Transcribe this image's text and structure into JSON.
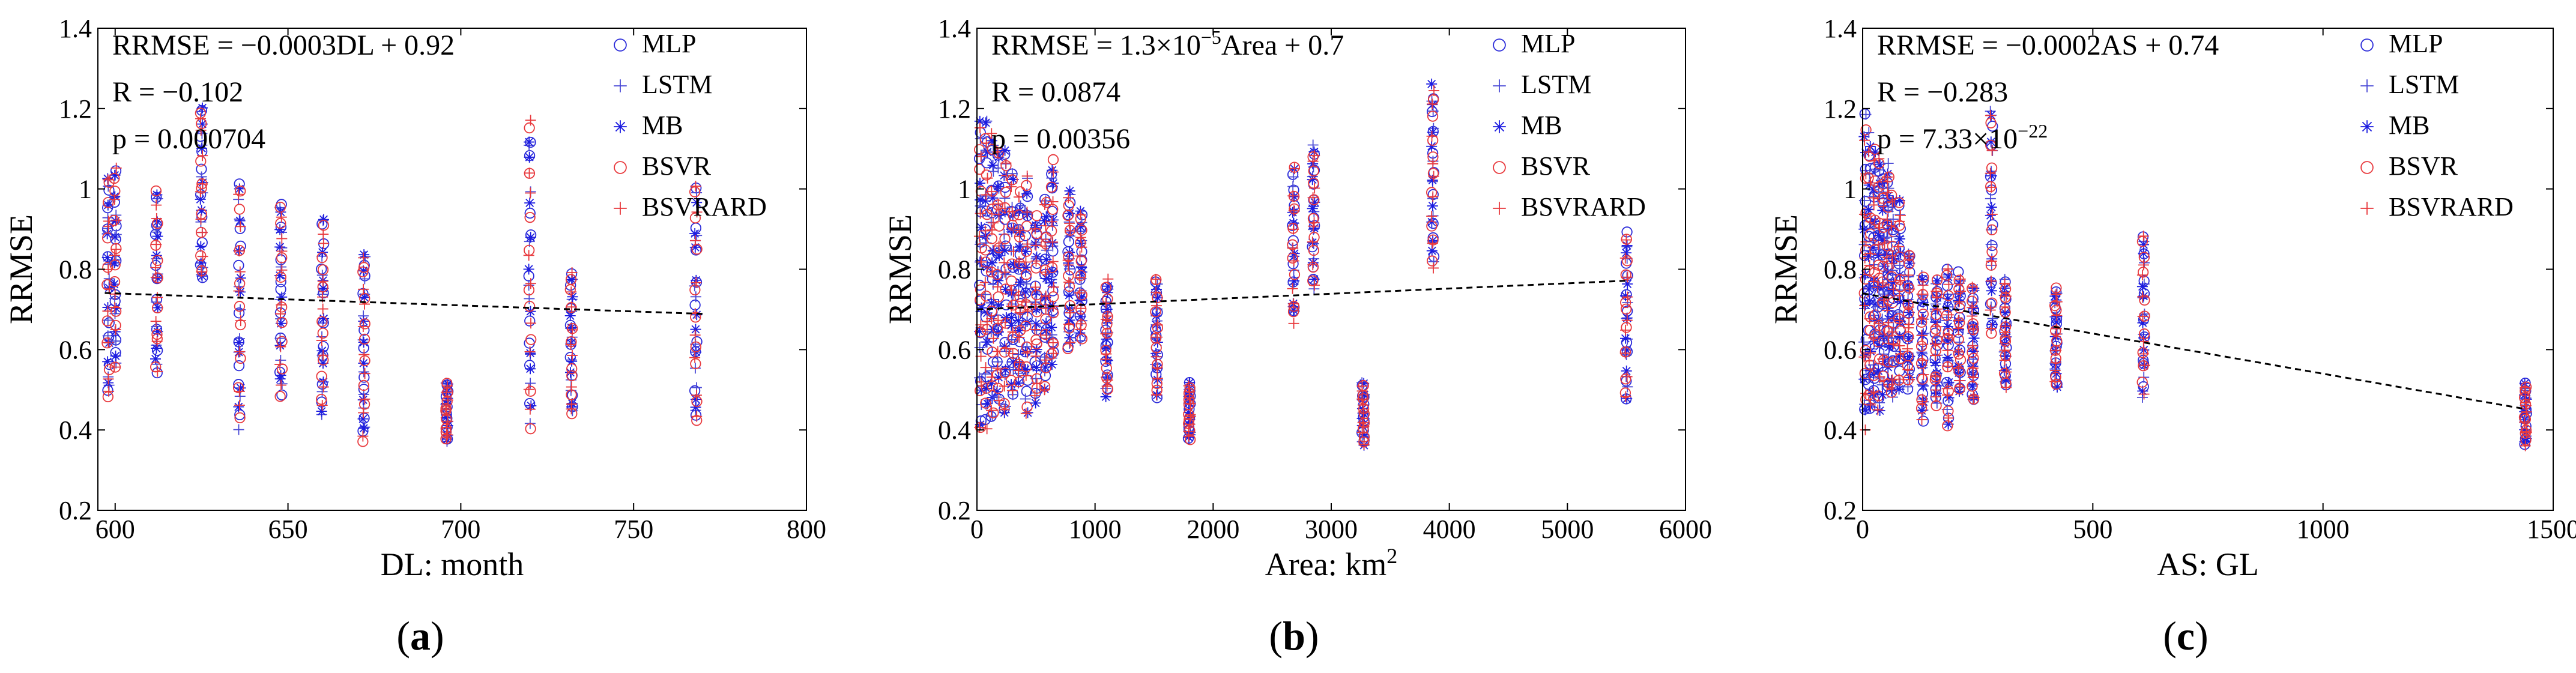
{
  "chart_data": [
    {
      "type": "scatter",
      "panel_label": "a",
      "xlabel": "DL: month",
      "ylabel": "RRMSE",
      "xlim": [
        595,
        800
      ],
      "ylim": [
        0.2,
        1.4
      ],
      "xticks": [
        "600",
        "650",
        "700",
        "750",
        "800"
      ],
      "xtick_values": [
        600,
        650,
        700,
        750,
        800
      ],
      "yticks": [
        "0.2",
        "0.4",
        "0.6",
        "0.8",
        "1",
        "1.2",
        "1.4"
      ],
      "ytick_values": [
        0.2,
        0.4,
        0.6,
        0.8,
        1.0,
        1.2,
        1.4
      ],
      "annotations": [
        {
          "text": "RRMSE = −0.0003DL + 0.92"
        },
        {
          "text": "R = −0.102"
        },
        {
          "text": "p = 0.000704"
        }
      ],
      "legend": {
        "position": "top-right",
        "entries": [
          "MLP",
          "LSTM",
          "MB",
          "BSVR",
          "BSVRARD"
        ]
      },
      "regression": {
        "slope": -0.0003,
        "intercept": 0.92,
        "x_range": [
          597,
          770
        ]
      },
      "clusters": [
        {
          "x": 598,
          "ymin": 0.46,
          "ymax": 1.05
        },
        {
          "x": 600,
          "ymin": 0.55,
          "ymax": 1.08
        },
        {
          "x": 612,
          "ymin": 0.53,
          "ymax": 1.01
        },
        {
          "x": 625,
          "ymin": 0.75,
          "ymax": 1.22
        },
        {
          "x": 636,
          "ymin": 0.4,
          "ymax": 1.04
        },
        {
          "x": 648,
          "ymin": 0.48,
          "ymax": 0.98
        },
        {
          "x": 660,
          "ymin": 0.43,
          "ymax": 0.93
        },
        {
          "x": 672,
          "ymin": 0.36,
          "ymax": 0.86
        },
        {
          "x": 696,
          "ymin": 0.37,
          "ymax": 0.52
        },
        {
          "x": 720,
          "ymin": 0.4,
          "ymax": 1.18
        },
        {
          "x": 732,
          "ymin": 0.42,
          "ymax": 0.81
        },
        {
          "x": 768,
          "ymin": 0.4,
          "ymax": 1.02
        }
      ]
    },
    {
      "type": "scatter",
      "panel_label": "b",
      "xlabel": "Area: km",
      "xlabel_sup": "2",
      "ylabel": "RRMSE",
      "xlim": [
        0,
        6000
      ],
      "ylim": [
        0.2,
        1.4
      ],
      "xticks": [
        "0",
        "1000",
        "2000",
        "3000",
        "4000",
        "5000",
        "6000"
      ],
      "xtick_values": [
        0,
        1000,
        2000,
        3000,
        4000,
        5000,
        6000
      ],
      "yticks": [
        "0.2",
        "0.4",
        "0.6",
        "0.8",
        "1",
        "1.2",
        "1.4"
      ],
      "ytick_values": [
        0.2,
        0.4,
        0.6,
        0.8,
        1.0,
        1.2,
        1.4
      ],
      "annotations": [
        {
          "text": "RRMSE = 1.3×10",
          "sup": "−5",
          "tail": "Area + 0.7"
        },
        {
          "text": "R = 0.0874"
        },
        {
          "text": "p = 0.00356"
        }
      ],
      "legend": {
        "position": "top-right",
        "entries": [
          "MLP",
          "LSTM",
          "MB",
          "BSVR",
          "BSVRARD"
        ]
      },
      "regression": {
        "slope": 1.3e-05,
        "intercept": 0.7,
        "x_range": [
          0,
          5500
        ]
      },
      "clusters": [
        {
          "x": 30,
          "ymin": 0.4,
          "ymax": 1.18
        },
        {
          "x": 80,
          "ymin": 0.4,
          "ymax": 1.2
        },
        {
          "x": 130,
          "ymin": 0.42,
          "ymax": 1.15
        },
        {
          "x": 180,
          "ymin": 0.45,
          "ymax": 1.1
        },
        {
          "x": 240,
          "ymin": 0.42,
          "ymax": 1.12
        },
        {
          "x": 300,
          "ymin": 0.48,
          "ymax": 1.05
        },
        {
          "x": 360,
          "ymin": 0.5,
          "ymax": 1.0
        },
        {
          "x": 420,
          "ymin": 0.44,
          "ymax": 1.04
        },
        {
          "x": 500,
          "ymin": 0.46,
          "ymax": 0.95
        },
        {
          "x": 580,
          "ymin": 0.5,
          "ymax": 0.98
        },
        {
          "x": 640,
          "ymin": 0.55,
          "ymax": 1.08
        },
        {
          "x": 780,
          "ymin": 0.6,
          "ymax": 1.0
        },
        {
          "x": 880,
          "ymin": 0.62,
          "ymax": 0.95
        },
        {
          "x": 1100,
          "ymin": 0.48,
          "ymax": 0.78
        },
        {
          "x": 1520,
          "ymin": 0.48,
          "ymax": 0.78
        },
        {
          "x": 1800,
          "ymin": 0.37,
          "ymax": 0.52
        },
        {
          "x": 2680,
          "ymin": 0.66,
          "ymax": 1.06
        },
        {
          "x": 2850,
          "ymin": 0.75,
          "ymax": 1.12
        },
        {
          "x": 3270,
          "ymin": 0.36,
          "ymax": 0.52
        },
        {
          "x": 3860,
          "ymin": 0.8,
          "ymax": 1.27
        },
        {
          "x": 5500,
          "ymin": 0.47,
          "ymax": 0.9
        }
      ]
    },
    {
      "type": "scatter",
      "panel_label": "c",
      "xlabel": "AS: GL",
      "ylabel": "RRMSE",
      "xlim": [
        0,
        1500
      ],
      "ylim": [
        0.2,
        1.4
      ],
      "xticks": [
        "0",
        "500",
        "1000",
        "1500"
      ],
      "xtick_values": [
        0,
        500,
        1000,
        1500
      ],
      "yticks": [
        "0.2",
        "0.4",
        "0.6",
        "0.8",
        "1",
        "1.2",
        "1.4"
      ],
      "ytick_values": [
        0.2,
        0.4,
        0.6,
        0.8,
        1.0,
        1.2,
        1.4
      ],
      "annotations": [
        {
          "text": "RRMSE = −0.0002AS + 0.74"
        },
        {
          "text": "R = −0.283"
        },
        {
          "text": "p = 7.33×10",
          "sup": "−22"
        }
      ],
      "legend": {
        "position": "top-right",
        "entries": [
          "MLP",
          "LSTM",
          "MB",
          "BSVR",
          "BSVRARD"
        ]
      },
      "regression": {
        "slope": -0.0002,
        "intercept": 0.74,
        "x_range": [
          0,
          1440
        ]
      },
      "clusters": [
        {
          "x": 5,
          "ymin": 0.4,
          "ymax": 1.2
        },
        {
          "x": 15,
          "ymin": 0.42,
          "ymax": 1.15
        },
        {
          "x": 25,
          "ymin": 0.45,
          "ymax": 1.12
        },
        {
          "x": 35,
          "ymin": 0.44,
          "ymax": 1.1
        },
        {
          "x": 45,
          "ymin": 0.48,
          "ymax": 1.05
        },
        {
          "x": 55,
          "ymin": 0.5,
          "ymax": 1.08
        },
        {
          "x": 65,
          "ymin": 0.46,
          "ymax": 1.0
        },
        {
          "x": 80,
          "ymin": 0.5,
          "ymax": 0.98
        },
        {
          "x": 100,
          "ymin": 0.5,
          "ymax": 0.86
        },
        {
          "x": 130,
          "ymin": 0.42,
          "ymax": 0.8
        },
        {
          "x": 160,
          "ymin": 0.46,
          "ymax": 0.78
        },
        {
          "x": 185,
          "ymin": 0.4,
          "ymax": 0.82
        },
        {
          "x": 210,
          "ymin": 0.48,
          "ymax": 0.8
        },
        {
          "x": 240,
          "ymin": 0.45,
          "ymax": 0.76
        },
        {
          "x": 280,
          "ymin": 0.62,
          "ymax": 1.22
        },
        {
          "x": 310,
          "ymin": 0.5,
          "ymax": 0.78
        },
        {
          "x": 420,
          "ymin": 0.5,
          "ymax": 0.76
        },
        {
          "x": 610,
          "ymin": 0.48,
          "ymax": 0.89
        },
        {
          "x": 1440,
          "ymin": 0.36,
          "ymax": 0.52
        }
      ]
    }
  ],
  "series_styles": [
    {
      "name": "MLP",
      "marker": "circle",
      "color": "#2b2bd9"
    },
    {
      "name": "LSTM",
      "marker": "plus",
      "color": "#4a4ad6"
    },
    {
      "name": "MB",
      "marker": "star",
      "color": "#1c1ce0"
    },
    {
      "name": "BSVR",
      "marker": "circle",
      "color": "#e8383c"
    },
    {
      "name": "BSVRARD",
      "marker": "plus",
      "color": "#e8383c"
    }
  ]
}
